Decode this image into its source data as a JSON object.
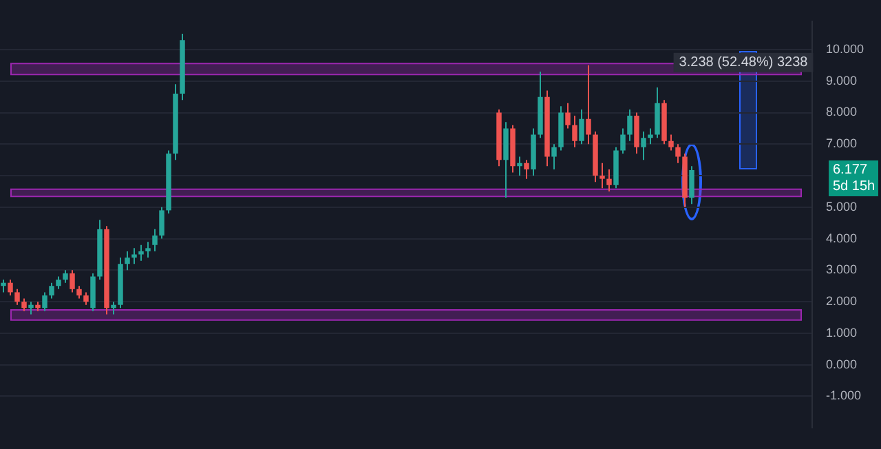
{
  "chart_data": {
    "type": "candlestick",
    "categories": [
      null,
      null,
      null,
      null,
      null,
      null,
      null,
      null,
      null,
      null,
      null,
      null,
      null,
      null,
      null,
      null,
      null,
      null,
      null,
      null,
      null,
      null,
      null,
      null,
      null,
      null,
      null,
      null,
      null,
      null,
      null,
      null,
      null,
      null,
      null,
      null,
      null,
      null,
      null,
      null,
      null,
      null,
      null,
      null,
      null,
      null,
      null,
      null,
      null,
      null,
      null,
      null,
      null,
      null,
      null,
      null,
      null,
      null,
      null,
      null,
      null,
      null,
      null,
      null,
      null,
      null,
      null,
      null,
      null,
      null,
      null,
      null,
      null,
      null,
      null,
      null,
      null,
      null,
      null,
      null,
      null,
      null,
      null,
      null,
      null,
      null,
      null,
      null,
      null,
      null,
      null,
      null,
      null,
      null,
      null,
      null,
      null,
      null,
      null,
      null,
      null,
      null,
      null,
      null,
      null,
      null,
      null,
      null,
      null,
      null,
      null,
      null,
      null,
      null,
      null,
      null,
      null,
      null
    ],
    "ohlc": [
      [
        2.5,
        2.7,
        2.3,
        2.6
      ],
      [
        2.6,
        2.7,
        2.2,
        2.3
      ],
      [
        2.3,
        2.4,
        1.9,
        2.0
      ],
      [
        2.0,
        2.1,
        1.7,
        1.8
      ],
      [
        1.8,
        2.0,
        1.6,
        1.9
      ],
      [
        1.9,
        2.0,
        1.7,
        1.8
      ],
      [
        1.8,
        2.3,
        1.7,
        2.2
      ],
      [
        2.2,
        2.6,
        2.1,
        2.5
      ],
      [
        2.5,
        2.8,
        2.4,
        2.7
      ],
      [
        2.7,
        3.0,
        2.6,
        2.9
      ],
      [
        2.9,
        3.0,
        2.3,
        2.4
      ],
      [
        2.4,
        2.5,
        2.1,
        2.2
      ],
      [
        2.2,
        2.3,
        1.9,
        2.0
      ],
      [
        1.8,
        2.9,
        1.7,
        2.8
      ],
      [
        2.8,
        4.6,
        2.7,
        4.3
      ],
      [
        4.3,
        4.4,
        1.6,
        1.8
      ],
      [
        1.8,
        2.0,
        1.6,
        1.9
      ],
      [
        1.9,
        3.4,
        1.8,
        3.2
      ],
      [
        3.2,
        3.6,
        3.0,
        3.4
      ],
      [
        3.4,
        3.7,
        3.2,
        3.5
      ],
      [
        3.5,
        3.8,
        3.3,
        3.6
      ],
      [
        3.6,
        3.9,
        3.4,
        3.7
      ],
      [
        3.8,
        4.3,
        3.6,
        4.1
      ],
      [
        4.1,
        5.0,
        4.0,
        4.9
      ],
      [
        4.9,
        6.8,
        4.8,
        6.7
      ],
      [
        6.7,
        8.9,
        6.5,
        8.6
      ],
      [
        8.6,
        10.5,
        8.4,
        10.3
      ],
      null,
      null,
      null,
      null,
      null,
      null,
      null,
      null,
      null,
      null,
      null,
      null,
      null,
      null,
      null,
      null,
      null,
      null,
      null,
      null,
      null,
      null,
      null,
      null,
      null,
      null,
      null,
      null,
      null,
      null,
      null,
      null,
      null,
      null,
      null,
      null,
      null,
      null,
      null,
      null,
      null,
      null,
      null,
      null,
      null,
      [
        8.0,
        8.1,
        6.3,
        6.5
      ],
      [
        6.5,
        7.7,
        5.3,
        7.5
      ],
      [
        7.5,
        7.6,
        6.1,
        6.3
      ],
      [
        6.3,
        6.6,
        6.0,
        6.4
      ],
      [
        6.4,
        6.5,
        5.9,
        6.2
      ],
      [
        6.2,
        7.5,
        6.0,
        7.3
      ],
      [
        7.3,
        9.3,
        7.2,
        8.5
      ],
      [
        8.5,
        8.7,
        6.3,
        6.6
      ],
      [
        6.6,
        7.0,
        6.2,
        6.9
      ],
      [
        6.9,
        8.2,
        6.8,
        8.0
      ],
      [
        8.0,
        8.3,
        7.5,
        7.6
      ],
      [
        7.6,
        7.9,
        6.9,
        7.1
      ],
      [
        7.1,
        8.1,
        7.0,
        7.8
      ],
      [
        7.8,
        9.5,
        7.0,
        7.3
      ],
      [
        7.3,
        7.4,
        5.8,
        6.0
      ],
      [
        6.0,
        6.4,
        5.6,
        5.9
      ],
      [
        5.9,
        6.2,
        5.5,
        5.7
      ],
      [
        5.7,
        6.9,
        5.6,
        6.8
      ],
      [
        6.8,
        7.5,
        6.7,
        7.3
      ],
      [
        7.3,
        8.1,
        7.1,
        7.9
      ],
      [
        7.9,
        8.0,
        6.7,
        6.9
      ],
      [
        6.9,
        7.4,
        6.5,
        7.2
      ],
      [
        7.2,
        7.5,
        7.0,
        7.3
      ],
      [
        7.3,
        8.8,
        7.2,
        8.3
      ],
      [
        8.3,
        8.4,
        7.0,
        7.1
      ],
      [
        7.1,
        7.3,
        6.8,
        6.9
      ],
      [
        6.9,
        7.0,
        6.4,
        6.6
      ],
      [
        6.6,
        6.7,
        5.0,
        5.3
      ],
      [
        5.3,
        6.3,
        5.1,
        6.177
      ],
      null,
      null,
      null,
      null,
      null,
      null,
      null,
      null,
      null,
      null,
      null,
      null,
      null,
      null,
      null,
      null,
      null
    ],
    "colors": [
      "#26a69a",
      "#ef5350",
      "#ef5350",
      "#ef5350",
      "#26a69a",
      "#ef5350",
      "#26a69a",
      "#26a69a",
      "#26a69a",
      "#26a69a",
      "#ef5350",
      "#ef5350",
      "#ef5350",
      "#26a69a",
      "#26a69a",
      "#ef5350",
      "#26a69a",
      "#26a69a",
      "#26a69a",
      "#26a69a",
      "#26a69a",
      "#26a69a",
      "#26a69a",
      "#26a69a",
      "#26a69a",
      "#26a69a",
      "#26a69a",
      null,
      null,
      null,
      null,
      null,
      null,
      null,
      null,
      null,
      null,
      null,
      null,
      null,
      null,
      null,
      null,
      null,
      null,
      null,
      null,
      null,
      null,
      null,
      null,
      null,
      null,
      null,
      null,
      null,
      null,
      null,
      null,
      null,
      null,
      null,
      null,
      null,
      null,
      null,
      null,
      null,
      null,
      null,
      null,
      null,
      "#ef5350",
      "#26a69a",
      "#ef5350",
      "#26a69a",
      "#ef5350",
      "#26a69a",
      "#26a69a",
      "#ef5350",
      "#26a69a",
      "#26a69a",
      "#ef5350",
      "#ef5350",
      "#26a69a",
      "#ef5350",
      "#ef5350",
      "#ef5350",
      "#ef5350",
      "#26a69a",
      "#26a69a",
      "#26a69a",
      "#ef5350",
      "#26a69a",
      "#26a69a",
      "#26a69a",
      "#ef5350",
      "#ef5350",
      "#ef5350",
      "#ef5350",
      "#26a69a",
      null,
      null,
      null,
      null,
      null,
      null,
      null,
      null,
      null,
      null,
      null,
      null,
      null,
      null,
      null,
      null,
      null
    ],
    "ylim": [
      -2.0,
      10.9
    ],
    "yticks": [
      {
        "value": -1,
        "label": "-1.000"
      },
      {
        "value": 0,
        "label": "0.000"
      },
      {
        "value": 1,
        "label": "1.000"
      },
      {
        "value": 2,
        "label": "2.000"
      },
      {
        "value": 3,
        "label": "3.000"
      },
      {
        "value": 4,
        "label": "4.000"
      },
      {
        "value": 5,
        "label": "5.000"
      },
      {
        "value": 6,
        "label": null
      },
      {
        "value": 7,
        "label": "7.000"
      },
      {
        "value": 8,
        "label": "8.000"
      },
      {
        "value": 9,
        "label": "9.000"
      },
      {
        "value": 10,
        "label": "10.000"
      }
    ],
    "tick_labels": "y",
    "grid": "y",
    "bands": [
      {
        "axis": "y",
        "from": 1.42,
        "to": 1.74,
        "color": "#9c27b0"
      },
      {
        "axis": "y",
        "from": 5.34,
        "to": 5.57,
        "color": "#9c27b0"
      },
      {
        "axis": "y",
        "from": 9.21,
        "to": 9.56,
        "color": "#9c27b0"
      }
    ],
    "annotations": [
      "3.238 (52.48%) 3238",
      "6.177",
      "5d 15h"
    ]
  }
}
